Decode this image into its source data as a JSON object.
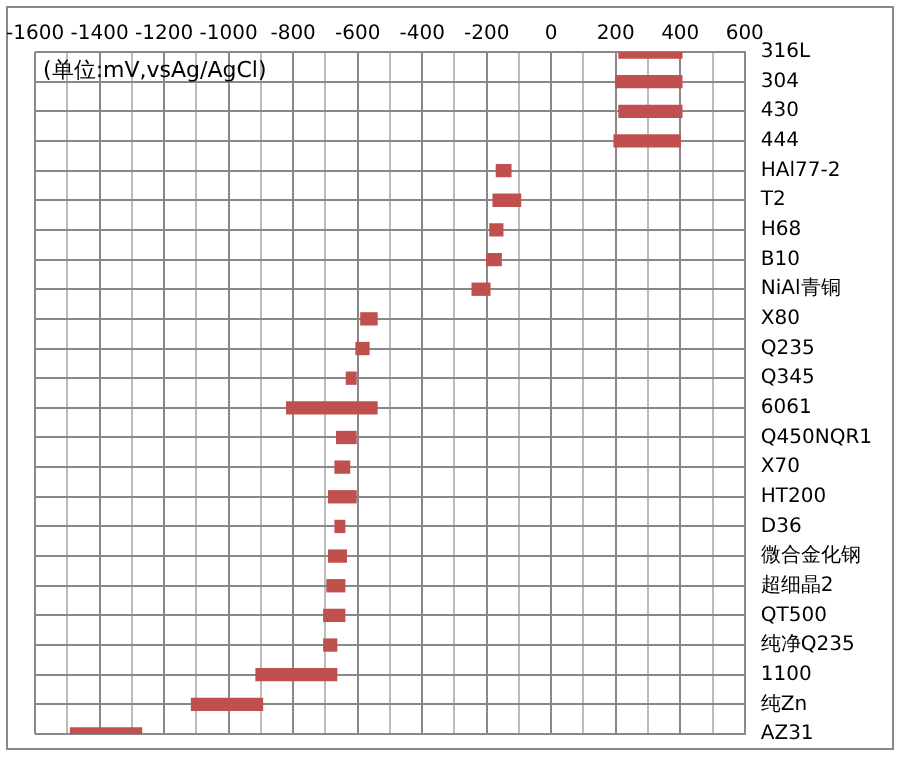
{
  "chart_data": {
    "type": "bar",
    "orientation": "horizontal",
    "categories": [
      "316L",
      "304",
      "430",
      "444",
      "HAl77-2",
      "T2",
      "H68",
      "B10",
      "NiAl青铜",
      "X80",
      "Q235",
      "Q345",
      "6061",
      "Q450NQR1",
      "X70",
      "HT200",
      "D36",
      "微合金化钢",
      "超细晶2",
      "QT500",
      "纯净Q235",
      "1100",
      "纯Zn",
      "AZ31"
    ],
    "base": [
      210,
      200,
      210,
      195,
      -170,
      -180,
      -190,
      -200,
      -245,
      -590,
      -605,
      -635,
      -820,
      -665,
      -670,
      -690,
      -670,
      -690,
      -695,
      -705,
      -705,
      -915,
      -1115,
      -1490
    ],
    "values": [
      195,
      205,
      195,
      205,
      45,
      85,
      40,
      45,
      55,
      50,
      40,
      30,
      280,
      60,
      45,
      85,
      30,
      55,
      55,
      65,
      40,
      250,
      220,
      220
    ],
    "color": "#c0504d",
    "xlim": [
      -1600,
      600
    ],
    "xticks": [
      -1600,
      {
        "value": -1500,
        "label": null
      },
      -1400,
      {
        "value": -1300,
        "label": null
      },
      -1200,
      {
        "value": -1100,
        "label": null
      },
      -1000,
      {
        "value": -900,
        "label": null
      },
      -800,
      {
        "value": -700,
        "label": null
      },
      -600,
      {
        "value": -500,
        "label": null
      },
      -400,
      {
        "value": -300,
        "label": null
      },
      -200,
      {
        "value": -100,
        "label": null
      },
      0,
      {
        "value": 100,
        "label": null
      },
      200,
      {
        "value": 300,
        "label": null
      },
      400,
      {
        "value": 500,
        "label": null
      },
      600
    ],
    "grid": true,
    "annotations": [
      "(单位:mV,vsAg/AgCl)"
    ]
  }
}
